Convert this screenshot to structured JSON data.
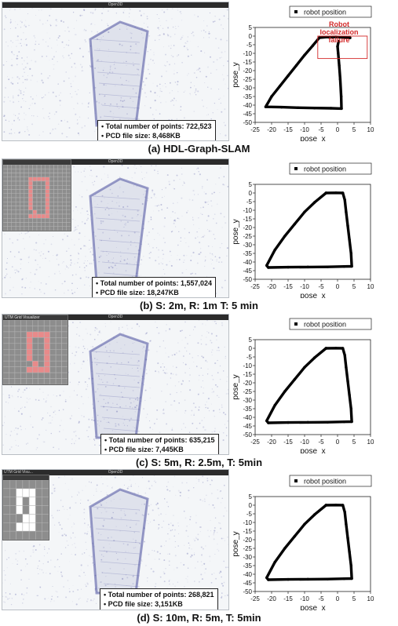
{
  "panels": [
    {
      "caption": "(a) HDL-Graph-SLAM",
      "window_title": "Open3D",
      "total_points": "Total number of points: 722,523",
      "pcd_size": "PCD file size: 8,468KB",
      "annotation": "Robot localization failure",
      "inset": null
    },
    {
      "caption": "(b) S: 2m, R: 1m T: 5 min",
      "window_title": "Open3D",
      "total_points": "Total number of points: 1,557,024",
      "pcd_size": "PCD file size: 18,247KB",
      "inset": {
        "title": ""
      }
    },
    {
      "caption": "(c) S: 5m, R: 2.5m, T: 5min",
      "window_title": "Open3D",
      "total_points": "Total number of points: 635,215",
      "pcd_size": "PCD file size: 7,445KB",
      "inset": {
        "title": "UTM Grid Visualizer"
      }
    },
    {
      "caption": "(d) S: 10m, R: 5m, T: 5min",
      "window_title": "Open3D",
      "window_title_left": "UTM Grid Visu...",
      "total_points": "Total number of points: 268,821",
      "pcd_size": "PCD file size: 3,151KB",
      "inset": {
        "title": ""
      }
    }
  ],
  "colors": {
    "trajectory": "#000000",
    "annotation": "#d32a2a",
    "cloud": "#4b4f9e",
    "grid_path": "#e88a8a"
  },
  "chart_data": [
    {
      "type": "scatter",
      "series": [
        {
          "name": "robot position",
          "x": [
            3.8,
            -0.5,
            -3.5,
            -5.5,
            -7.5,
            -10,
            -12.5,
            -15,
            -17.5,
            -20,
            -21.5,
            -21.8,
            -17,
            -12,
            -7,
            -2,
            1.2,
            1.1,
            0.8,
            0.5,
            0.2,
            0,
            0.3
          ],
          "y": [
            -1,
            -0.5,
            -0.6,
            -0.9,
            -5.5,
            -11,
            -17,
            -23,
            -29,
            -35,
            -40,
            -41,
            -41.2,
            -41.5,
            -41.7,
            -41.8,
            -42,
            -35,
            -25,
            -17,
            -10,
            -6,
            -3
          ]
        }
      ],
      "annotations": [
        {
          "text": "Robot localization failure"
        }
      ],
      "xlabel": "pose_x",
      "ylabel": "pose_y",
      "xlim": [
        -25,
        10
      ],
      "ylim": [
        -50,
        5
      ],
      "xticks": [
        -25,
        -20,
        -15,
        -10,
        -5,
        0,
        5,
        10
      ],
      "yticks": [
        5,
        0,
        -5,
        -10,
        -15,
        -20,
        -25,
        -30,
        -35,
        -40,
        -45,
        -50
      ],
      "legend": "top-right"
    },
    {
      "type": "scatter",
      "series": [
        {
          "name": "robot position",
          "x": [
            -3.5,
            -7,
            -10,
            -13,
            -16,
            -19,
            -21.5,
            -21,
            -15,
            -9,
            -3,
            2,
            4.3,
            4.1,
            3.6,
            3.1,
            2.6,
            2.2,
            1.6,
            -0.5,
            -3.5
          ],
          "y": [
            0,
            -5.5,
            -11,
            -18,
            -25,
            -33,
            -42,
            -43.2,
            -43,
            -42.9,
            -42.8,
            -42.6,
            -42.5,
            -35,
            -27,
            -19,
            -11,
            -4,
            0,
            0.1,
            0
          ]
        }
      ],
      "xlabel": "pose_x",
      "ylabel": "pose_y",
      "xlim": [
        -25,
        10
      ],
      "ylim": [
        -50,
        5
      ],
      "xticks": [
        -25,
        -20,
        -15,
        -10,
        -5,
        0,
        5,
        10
      ],
      "yticks": [
        5,
        0,
        -5,
        -10,
        -15,
        -20,
        -25,
        -30,
        -35,
        -40,
        -45,
        -50
      ],
      "legend": "top-right"
    },
    {
      "type": "scatter",
      "series": [
        {
          "name": "robot position",
          "x": [
            -3.5,
            -7,
            -10,
            -13,
            -16,
            -19,
            -21.5,
            -21,
            -15,
            -9,
            -3,
            2,
            4.3,
            4.1,
            3.6,
            3.1,
            2.6,
            2.2,
            1.6,
            -0.5,
            -3.5
          ],
          "y": [
            0,
            -5.5,
            -11,
            -18,
            -25,
            -33,
            -42,
            -43.2,
            -43,
            -42.9,
            -42.8,
            -42.6,
            -42.5,
            -35,
            -27,
            -19,
            -11,
            -4,
            0,
            0.1,
            0
          ]
        }
      ],
      "xlabel": "pose_x",
      "ylabel": "pose_y",
      "xlim": [
        -25,
        10
      ],
      "ylim": [
        -50,
        5
      ],
      "xticks": [
        -25,
        -20,
        -15,
        -10,
        -5,
        0,
        5,
        10
      ],
      "yticks": [
        5,
        0,
        -5,
        -10,
        -15,
        -20,
        -25,
        -30,
        -35,
        -40,
        -45,
        -50
      ],
      "legend": "top-right"
    },
    {
      "type": "scatter",
      "series": [
        {
          "name": "robot position",
          "x": [
            -3.5,
            -7,
            -10,
            -13,
            -16,
            -19,
            -21.5,
            -21,
            -15,
            -9,
            -3,
            2,
            4.3,
            4.1,
            3.6,
            3.1,
            2.6,
            2.2,
            1.6,
            -0.5,
            -3.5
          ],
          "y": [
            0,
            -5.5,
            -11,
            -18,
            -25,
            -33,
            -42,
            -43.2,
            -43,
            -42.9,
            -42.8,
            -42.6,
            -42.5,
            -35,
            -27,
            -19,
            -11,
            -4,
            0,
            0.1,
            0
          ]
        }
      ],
      "xlabel": "pose_x",
      "ylabel": "pose_y",
      "xlim": [
        -25,
        10
      ],
      "ylim": [
        -50,
        5
      ],
      "xticks": [
        -25,
        -20,
        -15,
        -10,
        -5,
        0,
        5,
        10
      ],
      "yticks": [
        5,
        0,
        -5,
        -10,
        -15,
        -20,
        -25,
        -30,
        -35,
        -40,
        -45,
        -50
      ],
      "legend": "top-right"
    }
  ]
}
